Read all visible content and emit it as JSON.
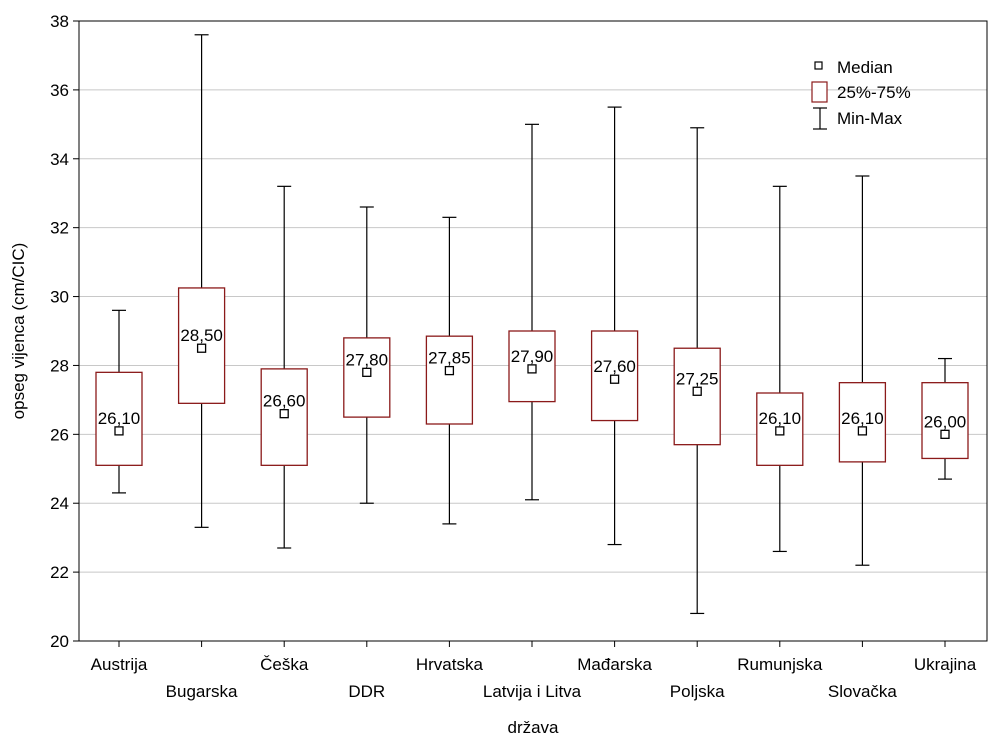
{
  "chart_data": {
    "type": "boxplot",
    "xlabel": "država",
    "ylabel": "opseg vijenca (cm/CIC)",
    "ylim": [
      20,
      38
    ],
    "yticks": [
      20,
      22,
      24,
      26,
      28,
      30,
      32,
      34,
      36,
      38
    ],
    "grid": "horizontal",
    "legend_position": "top-right",
    "legend": [
      {
        "symbol": "median-marker",
        "label": "Median"
      },
      {
        "symbol": "box",
        "label": "25%-75%"
      },
      {
        "symbol": "whisker",
        "label": "Min-Max"
      }
    ],
    "categories": [
      "Austrija",
      "Bugarska",
      "Češka",
      "DDR",
      "Hrvatska",
      "Latvija i Litva",
      "Mađarska",
      "Poljska",
      "Rumunjska",
      "Slovačka",
      "Ukrajina"
    ],
    "median": [
      26.1,
      28.5,
      26.6,
      27.8,
      27.85,
      27.9,
      27.6,
      27.25,
      26.1,
      26.1,
      26.0
    ],
    "median_labels": [
      "26,10",
      "28,50",
      "26,60",
      "27,80",
      "27,85",
      "27,90",
      "27,60",
      "27,25",
      "26,10",
      "26,10",
      "26,00"
    ],
    "q1": [
      25.1,
      26.9,
      25.1,
      26.5,
      26.3,
      26.95,
      26.4,
      25.7,
      25.1,
      25.2,
      25.3
    ],
    "q3": [
      27.8,
      30.25,
      27.9,
      28.8,
      28.85,
      29.0,
      29.0,
      28.5,
      27.2,
      27.5,
      27.5
    ],
    "min": [
      24.3,
      23.3,
      22.7,
      24.0,
      23.4,
      24.1,
      22.8,
      20.8,
      22.6,
      22.2,
      24.7
    ],
    "max": [
      29.6,
      37.6,
      33.2,
      32.6,
      32.3,
      35.0,
      35.5,
      34.9,
      33.2,
      33.5,
      28.2
    ],
    "colors": {
      "box": "#8b1a1a",
      "whisker": "#000000",
      "grid": "#c8c8c8",
      "median_marker": "#000000"
    }
  }
}
